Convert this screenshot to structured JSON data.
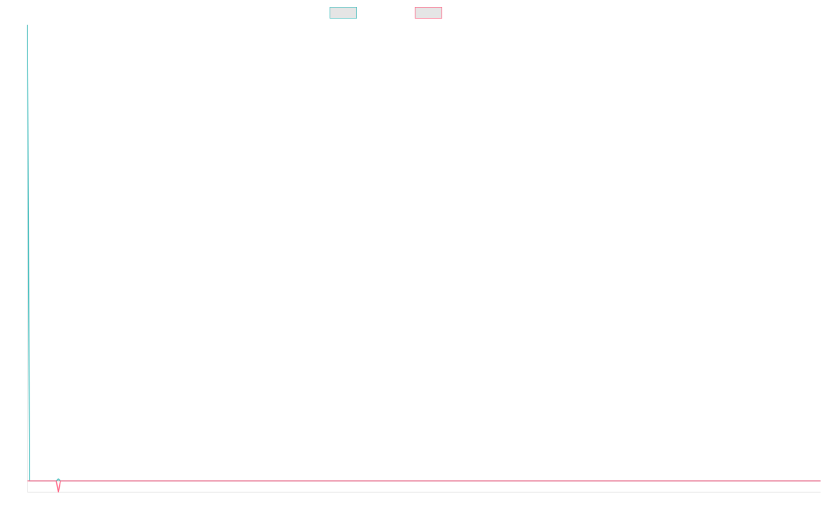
{
  "chart_data": {
    "type": "line",
    "title": "",
    "xlabel": "",
    "ylabel": "",
    "xlim": [
      0,
      385
    ],
    "ylim": [
      -2.5,
      100
    ],
    "grid": false,
    "legend_placement": "top",
    "series": [
      {
        "color": "#4bc0c0",
        "points": [
          [
            0,
            100
          ],
          [
            1,
            0
          ],
          [
            14,
            0
          ],
          [
            15,
            0.45
          ],
          [
            16,
            0
          ],
          [
            385,
            0
          ]
        ]
      },
      {
        "color": "#ff6384",
        "points": [
          [
            0,
            0
          ],
          [
            14,
            0
          ],
          [
            15,
            -2.5
          ],
          [
            16,
            0
          ],
          [
            385,
            0
          ]
        ]
      }
    ]
  }
}
